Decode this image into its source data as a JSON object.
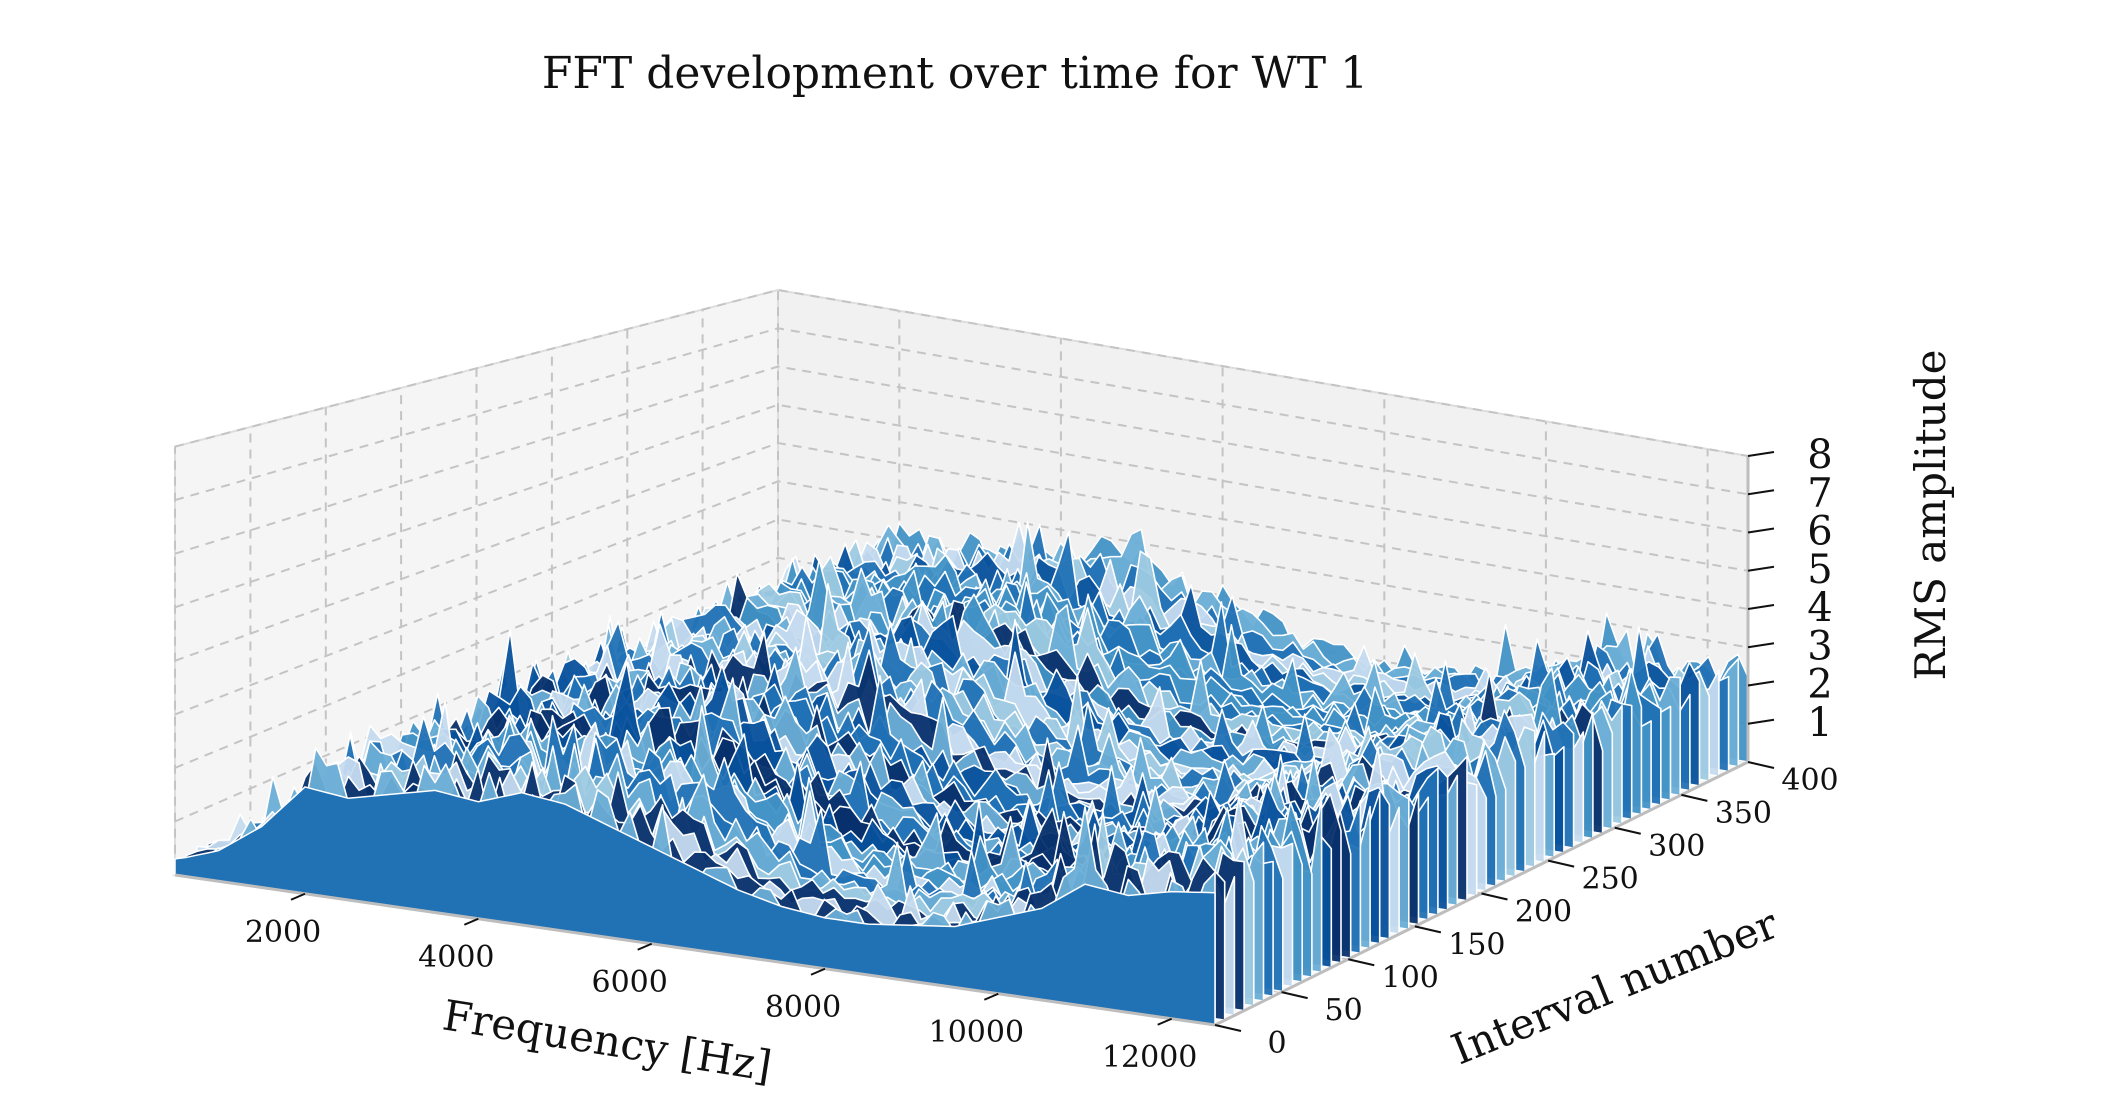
{
  "chart_data": {
    "type": "area",
    "subtype": "3d-waterfall",
    "title": "FFT development over time for WT 1",
    "xlabel": "Frequency [Hz]",
    "ylabel": "Interval number",
    "zlabel": "RMS amplitude",
    "x_ticks": [
      "2000",
      "4000",
      "6000",
      "8000",
      "10000",
      "12000"
    ],
    "y_ticks": [
      "0",
      "50",
      "100",
      "150",
      "200",
      "250",
      "300",
      "350",
      "400"
    ],
    "z_ticks": [
      "1",
      "2",
      "3",
      "4",
      "5",
      "6",
      "7",
      "8"
    ],
    "xlim": [
      500,
      12500
    ],
    "ylim": [
      0,
      400
    ],
    "zlim": [
      0,
      8
    ],
    "grid": true,
    "colormap": "Blues",
    "series_count": 400,
    "profile": {
      "frequency_hz": [
        500,
        1000,
        1500,
        2000,
        2500,
        3000,
        3500,
        4000,
        4500,
        5000,
        5500,
        6000,
        6500,
        7000,
        7500,
        8000,
        8500,
        9000,
        9500,
        10000,
        10500,
        11000,
        11500,
        12000,
        12500
      ],
      "rms_amplitude": [
        0.3,
        0.6,
        1.2,
        2.1,
        2.0,
        2.2,
        2.4,
        2.3,
        2.6,
        2.5,
        2.2,
        1.9,
        1.6,
        1.3,
        1.1,
        1.0,
        1.0,
        1.1,
        1.2,
        1.5,
        1.8,
        2.4,
        2.3,
        2.5,
        2.6
      ]
    }
  }
}
